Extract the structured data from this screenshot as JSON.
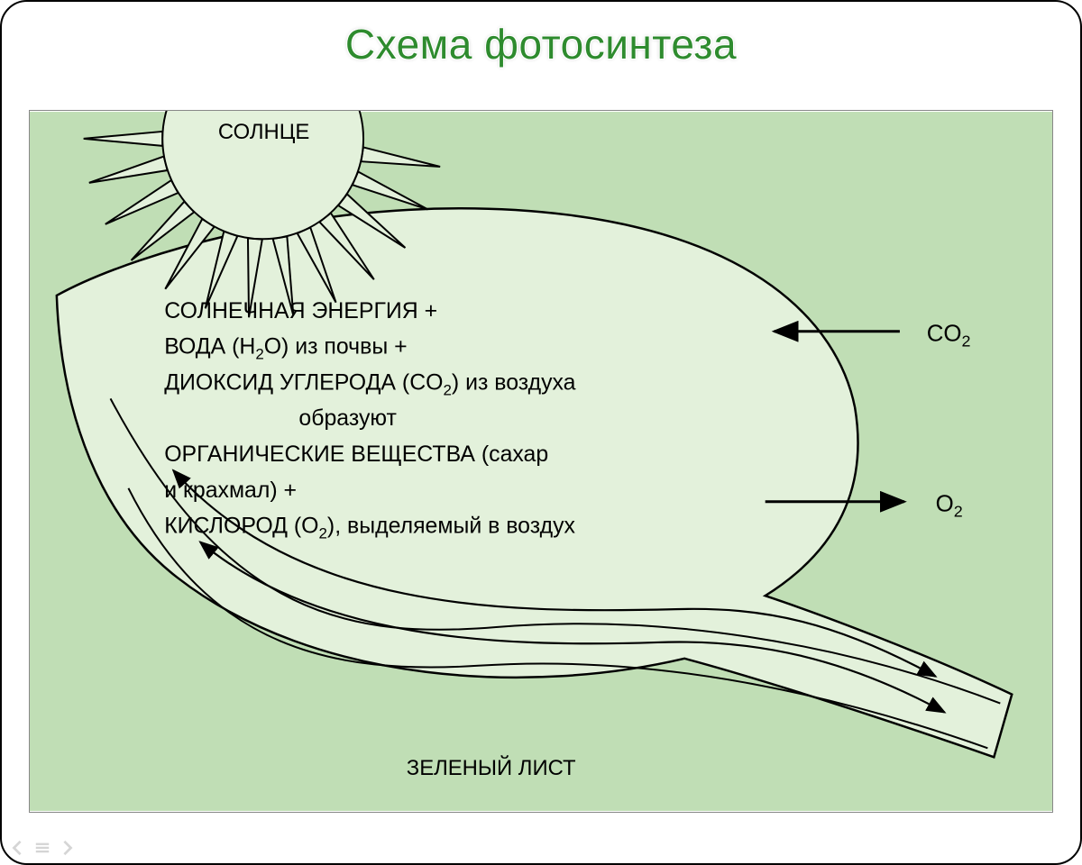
{
  "title": {
    "text": "Схема фотосинтеза",
    "font_size": 46,
    "fill_color": "#2e8b2e",
    "outline_color": "#ffffff"
  },
  "panel": {
    "background_color": "#c0deb5",
    "border_color": "#888888"
  },
  "leaf": {
    "fill_color": "#e3f1db",
    "stroke_color": "#000000",
    "stroke_width": 2.5
  },
  "sun": {
    "label": "СОЛНЦЕ",
    "fill_color": "#e3f1db",
    "stroke_color": "#000000",
    "stroke_width": 2,
    "ray_count": 13,
    "label_fontsize": 24
  },
  "inputs": {
    "co2": "CO",
    "co2_sub": "2",
    "o2": "O",
    "o2_sub": "2",
    "label_fontsize": 26
  },
  "body_text": {
    "fontsize": 25,
    "lines": [
      "СОЛНЕЧНАЯ ЭНЕРГИЯ +",
      "ВОДА (H2O) из почвы +",
      "ДИОКСИД УГЛЕРОДА (CO2) из воздуха",
      "образуют",
      "ОРГАНИЧЕСКИЕ ВЕЩЕСТВА (сахар",
      "и крахмал) +",
      "КИСЛОРОД (O2), выделяемый в воздух"
    ],
    "line1": "СОЛНЕЧНАЯ ЭНЕРГИЯ +",
    "line2_a": "ВОДА (H",
    "line2_sub": "2",
    "line2_b": "O) из почвы +",
    "line3_a": "ДИОКСИД УГЛЕРОДА (CO",
    "line3_sub": "2",
    "line3_b": ") из воздуха",
    "line4": "образуют",
    "line5": "ОРГАНИЧЕСКИЕ ВЕЩЕСТВА (сахар",
    "line6": "и крахмал) +",
    "line7_a": "КИСЛОРОД (O",
    "line7_sub": "2",
    "line7_b": "), выделяемый в воздух"
  },
  "bottom_label": {
    "text": "ЗЕЛЕНЫЙ ЛИСТ",
    "fontsize": 24
  },
  "arrows": {
    "stroke_color": "#000000",
    "stroke_width": 3
  }
}
